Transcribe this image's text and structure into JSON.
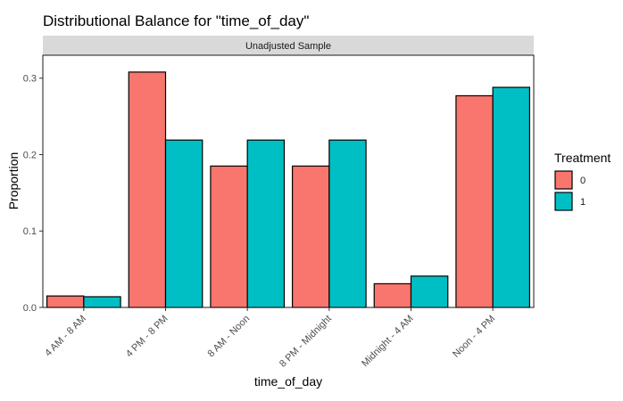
{
  "chart_data": {
    "type": "bar",
    "title": "Distributional Balance for \"time_of_day\"",
    "facet_label": "Unadjusted Sample",
    "xlabel": "time_of_day",
    "ylabel": "Proportion",
    "categories": [
      "4 AM - 8 AM",
      "4 PM - 8 PM",
      "8 AM - Noon",
      "8 PM - Midnight",
      "Midnight - 4 AM",
      "Noon - 4 PM"
    ],
    "series": [
      {
        "name": "0",
        "color": "#F8766D",
        "values": [
          0.015,
          0.308,
          0.185,
          0.185,
          0.031,
          0.277
        ]
      },
      {
        "name": "1",
        "color": "#00BFC4",
        "values": [
          0.014,
          0.219,
          0.219,
          0.219,
          0.041,
          0.288
        ]
      }
    ],
    "ylim": [
      0,
      0.33
    ],
    "yticks": [
      0.0,
      0.1,
      0.2,
      0.3
    ],
    "ytick_labels": [
      "0.0",
      "0.1",
      "0.2",
      "0.3"
    ],
    "legend": {
      "title": "Treatment",
      "position": "right"
    },
    "grid": false
  }
}
